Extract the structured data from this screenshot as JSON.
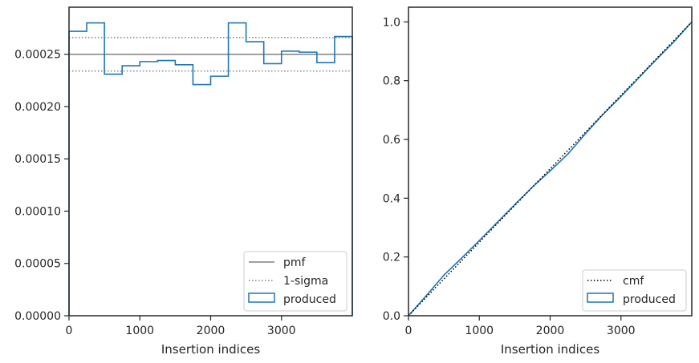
{
  "chart_data": [
    {
      "type": "step",
      "xlabel": "Insertion indices",
      "ylabel": "",
      "xlim": [
        0,
        4000
      ],
      "ylim": [
        0,
        0.000295
      ],
      "xticks": [
        {
          "value": 0,
          "label": "0"
        },
        {
          "value": 1000,
          "label": "1000"
        },
        {
          "value": 2000,
          "label": "2000"
        },
        {
          "value": 3000,
          "label": "3000"
        }
      ],
      "yticks": [
        {
          "value": 0,
          "label": "0.00000"
        },
        {
          "value": 5e-05,
          "label": "0.00005"
        },
        {
          "value": 0.0001,
          "label": "0.00010"
        },
        {
          "value": 0.00015,
          "label": "0.00015"
        },
        {
          "value": 0.0002,
          "label": "0.00020"
        },
        {
          "value": 0.00025,
          "label": "0.00025"
        }
      ],
      "pmf": 0.00025,
      "sigma_upper": 0.000266,
      "sigma_lower": 0.000234,
      "bin_edges": [
        0,
        250,
        500,
        750,
        1000,
        1250,
        1500,
        1750,
        2000,
        2250,
        2500,
        2750,
        3000,
        3250,
        3500,
        3750,
        4000
      ],
      "produced": [
        0.000272,
        0.00028,
        0.000231,
        0.000239,
        0.000243,
        0.000244,
        0.00024,
        0.000221,
        0.000229,
        0.00028,
        0.000262,
        0.000241,
        0.000253,
        0.000252,
        0.000242,
        0.000267
      ],
      "legend": {
        "position": "lower-right",
        "entries": [
          {
            "label": "pmf",
            "style": "solid",
            "color": "#808080"
          },
          {
            "label": "1-sigma",
            "style": "dotted",
            "color": "#808080"
          },
          {
            "label": "produced",
            "style": "box",
            "color": "#1f77b4"
          }
        ]
      }
    },
    {
      "type": "line",
      "xlabel": "Insertion indices",
      "ylabel": "",
      "xlim": [
        0,
        4000
      ],
      "ylim": [
        0,
        1.05
      ],
      "xticks": [
        {
          "value": 0,
          "label": "0"
        },
        {
          "value": 1000,
          "label": "1000"
        },
        {
          "value": 2000,
          "label": "2000"
        },
        {
          "value": 3000,
          "label": "3000"
        }
      ],
      "yticks": [
        {
          "value": 0,
          "label": "0.0"
        },
        {
          "value": 0.2,
          "label": "0.2"
        },
        {
          "value": 0.4,
          "label": "0.4"
        },
        {
          "value": 0.6,
          "label": "0.6"
        },
        {
          "value": 0.8,
          "label": "0.8"
        },
        {
          "value": 1.0,
          "label": "1.0"
        }
      ],
      "cmf": {
        "x": [
          0,
          4000
        ],
        "y": [
          0,
          1.0
        ]
      },
      "produced": {
        "x": [
          0,
          250,
          500,
          750,
          1000,
          1250,
          1500,
          1750,
          2000,
          2250,
          2500,
          2750,
          3000,
          3250,
          3500,
          3750,
          4000
        ],
        "y": [
          0,
          0.068,
          0.138,
          0.196,
          0.256,
          0.317,
          0.378,
          0.438,
          0.493,
          0.55,
          0.62,
          0.686,
          0.746,
          0.809,
          0.872,
          0.933,
          1.0
        ]
      },
      "legend": {
        "position": "lower-right",
        "entries": [
          {
            "label": "cmf",
            "style": "dotted",
            "color": "#000000"
          },
          {
            "label": "produced",
            "style": "box",
            "color": "#1f77b4"
          }
        ]
      }
    }
  ]
}
